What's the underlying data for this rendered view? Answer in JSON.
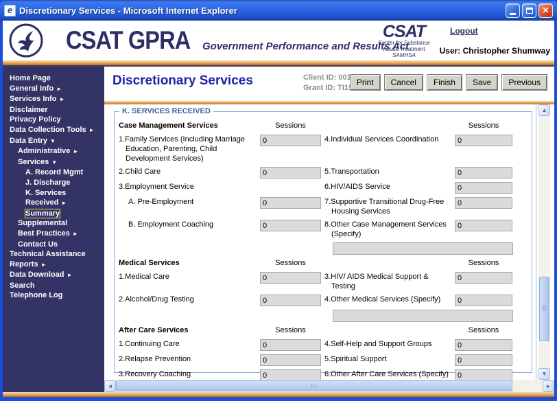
{
  "theme": {
    "titlebar_blue": "#2E6AE8",
    "sidebar_navy": "#343366",
    "stripe_orange": "#D88A3C",
    "legend_blue": "#336699",
    "field_gray": "#DBDBDB"
  },
  "icons": {
    "ie": "e",
    "close": "✕",
    "arrow_right": "►",
    "arrow_down": "▼",
    "scroll_up": "▲",
    "scroll_down": "▼",
    "scroll_left": "◄",
    "scroll_right": "►"
  },
  "window": {
    "title": "Discretionary Services - Microsoft Internet Explorer"
  },
  "header": {
    "logo_main": "CSAT GPRA",
    "logo_tagline": "Government Performance and Results Act",
    "csat_logo": {
      "title": "CSAT",
      "line1": "Center for Substance",
      "line2": "Abuse Treatment",
      "line3": "SAMHSA"
    },
    "logout": "Logout",
    "user": "User: Christopher Shumway"
  },
  "sidebar": {
    "items": [
      {
        "label": "Home Page",
        "indent": 0
      },
      {
        "label": "General Info",
        "indent": 0,
        "arrow": "right"
      },
      {
        "label": "Services Info",
        "indent": 0,
        "arrow": "right"
      },
      {
        "label": "Disclaimer",
        "indent": 0
      },
      {
        "label": "Privacy Policy",
        "indent": 0
      },
      {
        "label": "Data Collection Tools",
        "indent": 0,
        "arrow": "right"
      },
      {
        "label": "Data Entry",
        "indent": 0,
        "arrow": "down"
      },
      {
        "label": "Administrative",
        "indent": 1,
        "arrow": "right"
      },
      {
        "label": "Services",
        "indent": 1,
        "arrow": "down"
      },
      {
        "label": "A. Record Mgmt",
        "indent": 2
      },
      {
        "label": "J. Discharge",
        "indent": 2
      },
      {
        "label": "K. Services Received",
        "indent": 2,
        "arrow": "right"
      },
      {
        "label": "Summary",
        "indent": 2,
        "focused": true
      },
      {
        "label": "Supplemental",
        "indent": 1
      },
      {
        "label": "Best Practices",
        "indent": 1,
        "arrow": "right"
      },
      {
        "label": "Contact Us",
        "indent": 1
      },
      {
        "label": "Technical Assistance",
        "indent": 0
      },
      {
        "label": "Reports",
        "indent": 0,
        "arrow": "right"
      },
      {
        "label": "Data Download",
        "indent": 0,
        "arrow": "right"
      },
      {
        "label": "Search",
        "indent": 0
      },
      {
        "label": "Telephone Log",
        "indent": 0
      }
    ]
  },
  "main": {
    "page_title": "Discretionary Services",
    "client_id": "Client ID: 001",
    "grant_id": "Grant ID: TI15703",
    "buttons": [
      "Print",
      "Cancel",
      "Finish",
      "Save",
      "Previous"
    ]
  },
  "form": {
    "legend": "K. SERVICES RECEIVED",
    "sessions_header": "Sessions",
    "sections": [
      {
        "title": "Case Management Services",
        "rows": [
          {
            "left": {
              "label": "1.Family Services (Including Marriage Education, Parenting, Child Development Services)",
              "value": "0"
            },
            "right": {
              "label": "4.Individual Services Coordination",
              "value": "0"
            }
          },
          {
            "left": {
              "label": "2.Child Care",
              "value": "0"
            },
            "right": {
              "label": "5.Transportation",
              "value": "0"
            }
          },
          {
            "left": {
              "label": "3.Employment Service",
              "no_input": true
            },
            "right": {
              "label": "6.HIV/AIDS Service",
              "value": "0"
            }
          },
          {
            "left": {
              "label": "A. Pre-Employment",
              "value": "0",
              "indent": true
            },
            "right": {
              "label": "7.Supportive Transitional Drug-Free Housing Services",
              "value": "0"
            }
          },
          {
            "left": {
              "label": "B. Employment Coaching",
              "value": "0",
              "indent": true
            },
            "right": {
              "label": "8.Other Case Management Services (Specify)",
              "value": "0"
            }
          },
          {
            "specify": true,
            "value": ""
          }
        ]
      },
      {
        "title": "Medical Services",
        "rows": [
          {
            "left": {
              "label": "1.Medical Care",
              "value": "0"
            },
            "right": {
              "label": "3.HIV/ AIDS Medical Support & Testing",
              "value": "0"
            }
          },
          {
            "left": {
              "label": "2.Alcohol/Drug Testing",
              "value": "0"
            },
            "right": {
              "label": "4.Other Medical Services (Specify)",
              "value": "0"
            }
          },
          {
            "specify": true,
            "value": ""
          }
        ]
      },
      {
        "title": "After Care Services",
        "rows": [
          {
            "left": {
              "label": "1.Continuing Care",
              "value": "0"
            },
            "right": {
              "label": "4.Self-Help and Support Groups",
              "value": "0"
            }
          },
          {
            "left": {
              "label": "2.Relapse Prevention",
              "value": "0"
            },
            "right": {
              "label": "5.Spiritual Support",
              "value": "0"
            }
          },
          {
            "left": {
              "label": "3.Recovery Coaching",
              "value": "0"
            },
            "right": {
              "label": "6.Other After Care Services (Specify)",
              "value": "0"
            }
          },
          {
            "specify": true,
            "value": ""
          }
        ]
      }
    ]
  }
}
